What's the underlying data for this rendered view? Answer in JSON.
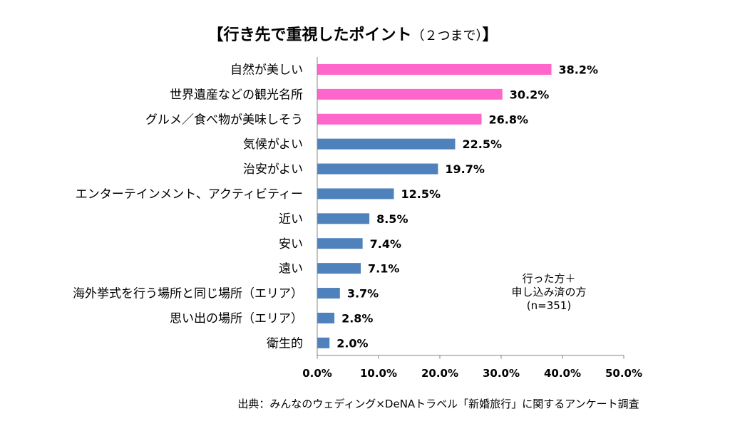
{
  "chart_data": {
    "type": "bar",
    "orientation": "horizontal",
    "title": "【行き先で重視したポイント",
    "title_suffix": "（２つまで）",
    "title_close": "】",
    "categories": [
      "自然が美しい",
      "世界遺産などの観光名所",
      "グルメ／食べ物が美味しそう",
      "気候がよい",
      "治安がよい",
      "エンターテインメント、アクティビティー",
      "近い",
      "安い",
      "遠い",
      "海外挙式を行う場所と同じ場所（エリア）",
      "思い出の場所（エリア）",
      "衛生的"
    ],
    "values": [
      38.2,
      30.2,
      26.8,
      22.5,
      19.7,
      12.5,
      8.5,
      7.4,
      7.1,
      3.7,
      2.8,
      2.0
    ],
    "value_labels": [
      "38.2%",
      "30.2%",
      "26.8%",
      "22.5%",
      "19.7%",
      "12.5%",
      "8.5%",
      "7.4%",
      "7.1%",
      "3.7%",
      "2.8%",
      "2.0%"
    ],
    "bar_colors": [
      "#ff66cc",
      "#ff66cc",
      "#ff66cc",
      "#4f81bd",
      "#4f81bd",
      "#4f81bd",
      "#4f81bd",
      "#4f81bd",
      "#4f81bd",
      "#4f81bd",
      "#4f81bd",
      "#4f81bd"
    ],
    "xlim": [
      0,
      50
    ],
    "xticks": [
      0,
      10,
      20,
      30,
      40,
      50
    ],
    "xtick_labels": [
      "0.0%",
      "10.0%",
      "20.0%",
      "30.0%",
      "40.0%",
      "50.0%"
    ],
    "grid": false,
    "note": [
      "行った方＋",
      "申し込み済の方",
      "(n=351)"
    ],
    "source": "出典：みんなのウェディング×DeNAトラベル「新婚旅行」に関するアンケート調査"
  }
}
